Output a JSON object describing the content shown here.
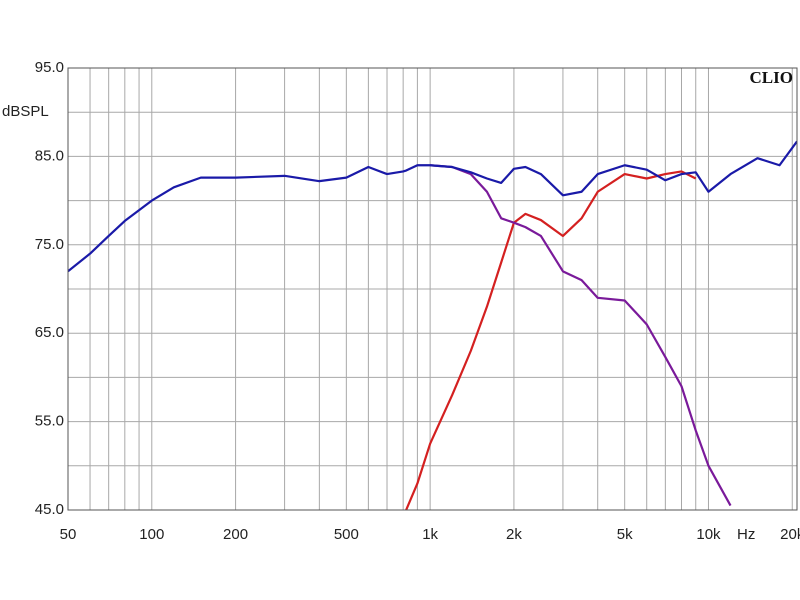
{
  "chart_data": {
    "type": "line",
    "y_label": "dBSPL",
    "x_label": "Hz",
    "watermark": "CLIO",
    "log_x": true,
    "grid": true,
    "xlim": [
      50,
      20800
    ],
    "ylim": [
      45,
      95
    ],
    "xticks": [
      50,
      100,
      200,
      500,
      {
        "value": 1000,
        "label": "1k"
      },
      {
        "value": 2000,
        "label": "2k"
      },
      {
        "value": 5000,
        "label": "5k"
      },
      {
        "value": 10000,
        "label": "10k"
      },
      {
        "value": 20000,
        "label": "20k"
      }
    ],
    "xminorticks": [
      60,
      70,
      80,
      90,
      300,
      400,
      600,
      700,
      800,
      900,
      3000,
      4000,
      6000,
      7000,
      8000,
      9000
    ],
    "yticks": [
      {
        "value": 95,
        "label": "95.0"
      },
      {
        "value": 85,
        "label": "85.0"
      },
      {
        "value": 75,
        "label": "75.0"
      },
      {
        "value": 65,
        "label": "65.0"
      },
      {
        "value": 55,
        "label": "55.0"
      },
      {
        "value": 45,
        "label": "45.0"
      }
    ],
    "yminorticks": [
      90,
      80,
      70,
      60,
      50
    ],
    "x": [
      50,
      60,
      70,
      80,
      100,
      120,
      150,
      200,
      300,
      400,
      500,
      600,
      700,
      800,
      820,
      900,
      1000,
      1200,
      1400,
      1600,
      1800,
      2000,
      2200,
      2500,
      3000,
      3500,
      4000,
      5000,
      6000,
      7000,
      8000,
      9000,
      10000,
      12000,
      15000,
      18000,
      20800
    ],
    "series": [
      {
        "color": "#d42020",
        "values": [
          null,
          null,
          null,
          null,
          null,
          null,
          null,
          null,
          null,
          null,
          null,
          null,
          null,
          null,
          45,
          48,
          52.5,
          58,
          63,
          68,
          73,
          77.5,
          78.5,
          77.8,
          76,
          78,
          81,
          83,
          82.5,
          83,
          83.3,
          82.5,
          null,
          null,
          null,
          null,
          null
        ]
      },
      {
        "color": "#7a1a9a",
        "values": [
          null,
          null,
          null,
          null,
          null,
          null,
          null,
          null,
          null,
          null,
          null,
          null,
          null,
          null,
          null,
          null,
          84,
          83.8,
          83,
          81,
          78,
          77.5,
          77,
          76,
          72,
          71,
          69,
          68.7,
          66,
          62.3,
          59,
          54,
          50,
          45.5,
          null,
          null,
          null
        ]
      },
      {
        "color": "#1a1aa8",
        "values": [
          72,
          74,
          76,
          77.7,
          80,
          81.5,
          82.6,
          82.6,
          82.8,
          82.2,
          82.6,
          83.8,
          83,
          83.3,
          83.4,
          84,
          84,
          83.8,
          83.2,
          82.5,
          82,
          83.6,
          83.8,
          83,
          80.6,
          81,
          83,
          84,
          83.5,
          82.3,
          83,
          83.2,
          81,
          83,
          84.8,
          84,
          86.7
        ]
      }
    ]
  }
}
